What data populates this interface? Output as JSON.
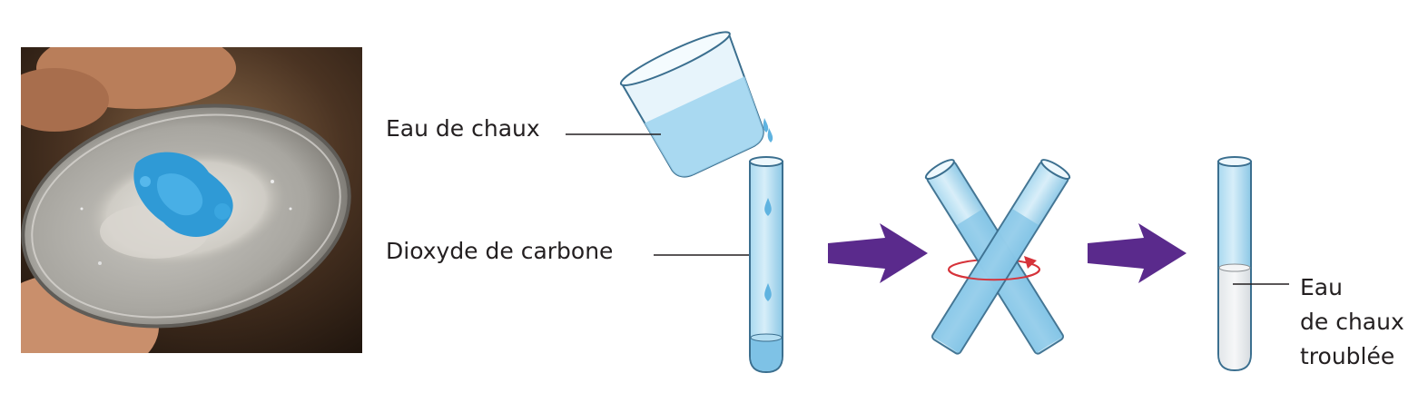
{
  "labels": {
    "lime_water": "Eau de chaux",
    "carbon_dioxide": "Dioxyde de carbone",
    "cloudy_lime_water": [
      "Eau",
      "de chaux",
      "troublée"
    ]
  },
  "colors": {
    "arrow": "#5a2a8c",
    "rotation_arrow": "#d6333a",
    "liquid": "#9ed3ee",
    "tube_outline": "#3b6f8f",
    "powder_blue": "#2f9ad6",
    "leader_line": "#231f20"
  },
  "icons": {
    "photo": "copper-sulfate-powder-photo",
    "beaker": "beaker-icon",
    "arrow": "right-arrow-icon"
  }
}
